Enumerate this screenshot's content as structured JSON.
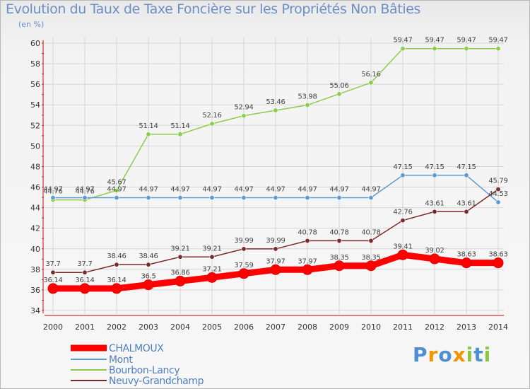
{
  "header": {
    "title": "Evolution du Taux de Taxe Foncière sur les Propriétés Non Bâties",
    "unit": "(en %)"
  },
  "chart_data": {
    "type": "line",
    "title": "Evolution du Taux de Taxe Foncière sur les Propriétés Non Bâties",
    "ylabel": "(en %)",
    "xlabel": "",
    "ylim": [
      34,
      60
    ],
    "yticks": [
      34,
      36,
      38,
      40,
      42,
      44,
      46,
      48,
      50,
      52,
      54,
      56,
      58,
      60
    ],
    "grid": true,
    "legend_position": "bottom-left",
    "categories": [
      "2000",
      "2001",
      "2002",
      "2003",
      "2004",
      "2005",
      "2006",
      "2007",
      "2008",
      "2009",
      "2010",
      "2011",
      "2012",
      "2013",
      "2014"
    ],
    "series": [
      {
        "name": "CHALMOUX",
        "color": "#ff0000",
        "emphasis": true,
        "values": [
          36.14,
          36.14,
          36.14,
          36.5,
          36.86,
          37.21,
          37.59,
          37.97,
          37.97,
          38.35,
          38.35,
          39.41,
          39.02,
          38.63,
          38.63
        ],
        "labels": [
          "36.14",
          "36.14",
          "36.14",
          "36.5",
          "36.86",
          "37.21",
          "37.59",
          "37.97",
          "37.97",
          "38.35",
          "38.35",
          "39.41",
          "39.02",
          "38.63",
          "38.63"
        ]
      },
      {
        "name": "Mont",
        "color": "#5c9bd1",
        "values": [
          44.97,
          44.97,
          44.97,
          44.97,
          44.97,
          44.97,
          44.97,
          44.97,
          44.97,
          44.97,
          44.97,
          47.15,
          47.15,
          47.15,
          44.53
        ],
        "labels": [
          "44.97",
          "44.97",
          "44.97",
          "44.97",
          "44.97",
          "44.97",
          "44.97",
          "44.97",
          "44.97",
          "44.97",
          "44.97",
          "47.15",
          "47.15",
          "47.15",
          "44.53"
        ]
      },
      {
        "name": "Bourbon-Lancy",
        "color": "#8ccc4a",
        "values": [
          44.76,
          44.76,
          45.67,
          51.14,
          51.14,
          52.16,
          52.94,
          53.46,
          53.98,
          55.06,
          56.16,
          59.47,
          59.47,
          59.47,
          59.47
        ],
        "labels": [
          "44.76",
          "44.76",
          "45.67",
          "51.14",
          "51.14",
          "52.16",
          "52.94",
          "53.46",
          "53.98",
          "55.06",
          "56.16",
          "59.47",
          "59.47",
          "59.47",
          "59.47"
        ]
      },
      {
        "name": "Neuvy-Grandchamp",
        "color": "#7a2a2a",
        "values": [
          37.7,
          37.7,
          38.46,
          38.46,
          39.21,
          39.21,
          39.99,
          39.99,
          40.78,
          40.78,
          40.78,
          42.76,
          43.61,
          43.61,
          45.79
        ],
        "labels": [
          "37.7",
          "37.7",
          "38.46",
          "38.46",
          "39.21",
          "39.21",
          "39.99",
          "39.99",
          "40.78",
          "40.78",
          "40.78",
          "42.76",
          "43.61",
          "43.61",
          "45.79"
        ]
      }
    ]
  },
  "logo": {
    "text": "Proxiti",
    "colors": [
      "#4d8fd0",
      "#f29400",
      "#4d8fd0",
      "#f29400",
      "#8cc63f",
      "#4d8fd0",
      "#8cc63f"
    ]
  }
}
